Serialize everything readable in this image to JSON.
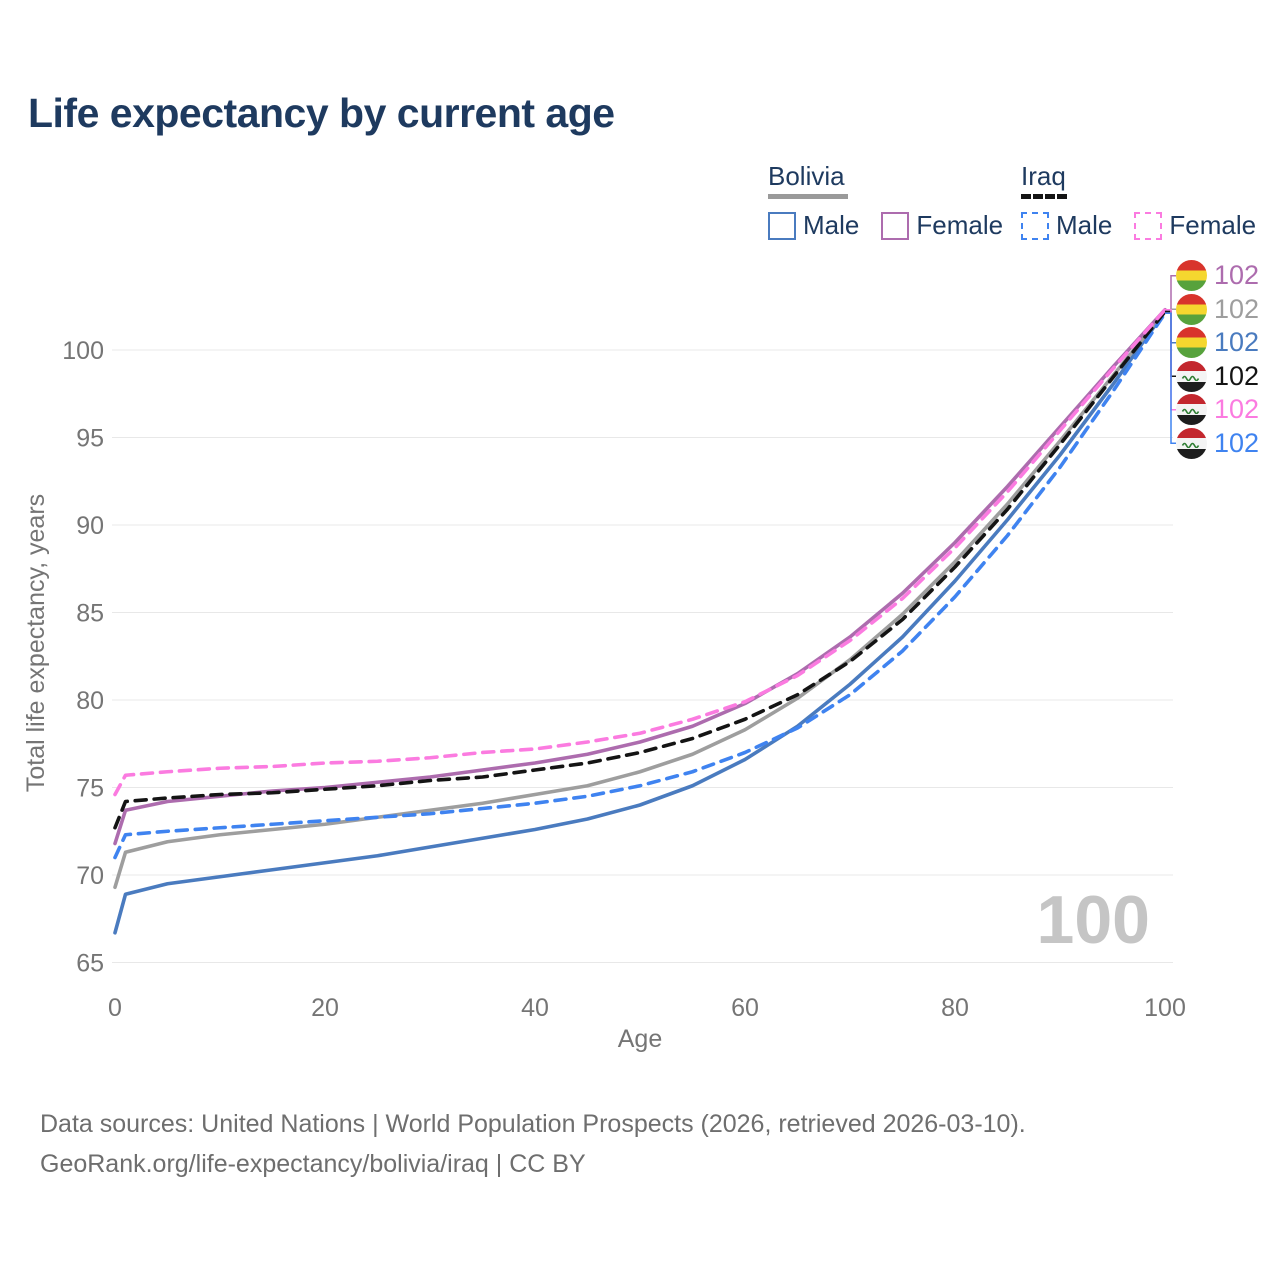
{
  "title": "Life expectancy by current age",
  "legend": {
    "groups": [
      {
        "label": "Bolivia",
        "rule_color": "#9a9a9a",
        "rule_style": "solid",
        "items": [
          {
            "label": "Male",
            "color": "#4a7bbf",
            "dash": "solid"
          },
          {
            "label": "Female",
            "color": "#ad6cae",
            "dash": "solid"
          }
        ]
      },
      {
        "label": "Iraq",
        "rule_color": "#141414",
        "rule_style": "dashed",
        "items": [
          {
            "label": "Male",
            "color": "#3f83f0",
            "dash": "dashed"
          },
          {
            "label": "Female",
            "color": "#fb7be0",
            "dash": "dashed"
          }
        ]
      }
    ]
  },
  "chart_data": {
    "type": "line",
    "title": "Life expectancy by current age",
    "xlabel": "Age",
    "ylabel": "Total life expectancy, years",
    "xlim": [
      0,
      100
    ],
    "ylim": [
      65,
      103
    ],
    "x_ticks": [
      0,
      20,
      40,
      60,
      80,
      100
    ],
    "y_ticks": [
      65,
      70,
      75,
      80,
      85,
      90,
      95,
      100
    ],
    "grid": "horizontal",
    "legend_position": "top-right",
    "ages": [
      0,
      1,
      5,
      10,
      15,
      20,
      25,
      30,
      35,
      40,
      45,
      50,
      55,
      60,
      65,
      70,
      75,
      80,
      85,
      90,
      95,
      100
    ],
    "series": [
      {
        "id": "bolivia-male",
        "name": "Bolivia Male",
        "country": "Bolivia",
        "sex": "Male",
        "color": "#4a7bbf",
        "dash": "solid",
        "values": [
          66.7,
          68.9,
          69.5,
          69.9,
          70.3,
          70.7,
          71.1,
          71.6,
          72.1,
          72.6,
          73.2,
          74.0,
          75.1,
          76.6,
          78.5,
          80.9,
          83.6,
          86.8,
          90.3,
          94.0,
          98.0,
          102.2
        ]
      },
      {
        "id": "bolivia-combined",
        "name": "Bolivia",
        "country": "Bolivia",
        "sex": "Combined",
        "color": "#9e9e9e",
        "dash": "solid",
        "values": [
          69.3,
          71.3,
          71.9,
          72.3,
          72.6,
          72.9,
          73.3,
          73.7,
          74.1,
          74.6,
          75.1,
          75.9,
          76.9,
          78.3,
          80.1,
          82.3,
          84.9,
          87.9,
          91.2,
          94.8,
          98.5,
          102.2
        ]
      },
      {
        "id": "bolivia-female",
        "name": "Bolivia Female",
        "country": "Bolivia",
        "sex": "Female",
        "color": "#ad6cae",
        "dash": "solid",
        "values": [
          71.8,
          73.7,
          74.2,
          74.5,
          74.8,
          75.0,
          75.3,
          75.6,
          76.0,
          76.4,
          76.9,
          77.6,
          78.5,
          79.8,
          81.5,
          83.6,
          86.1,
          89.0,
          92.2,
          95.6,
          99.0,
          102.3
        ]
      },
      {
        "id": "iraq-male",
        "name": "Iraq Male",
        "country": "Iraq",
        "sex": "Male",
        "color": "#3f83f0",
        "dash": "dashed",
        "values": [
          71.0,
          72.3,
          72.5,
          72.7,
          72.9,
          73.1,
          73.3,
          73.5,
          73.8,
          74.1,
          74.5,
          75.1,
          75.9,
          77.0,
          78.4,
          80.3,
          82.8,
          85.9,
          89.4,
          93.3,
          97.6,
          102.1
        ]
      },
      {
        "id": "iraq-combined",
        "name": "Iraq",
        "country": "Iraq",
        "sex": "Combined",
        "color": "#141414",
        "dash": "dashed",
        "values": [
          72.7,
          74.2,
          74.4,
          74.6,
          74.7,
          74.9,
          75.1,
          75.4,
          75.6,
          76.0,
          76.4,
          77.0,
          77.8,
          78.9,
          80.3,
          82.2,
          84.6,
          87.6,
          90.9,
          94.6,
          98.4,
          102.2
        ]
      },
      {
        "id": "iraq-female",
        "name": "Iraq Female",
        "country": "Iraq",
        "sex": "Female",
        "color": "#fb7be0",
        "dash": "dashed",
        "values": [
          74.6,
          75.7,
          75.9,
          76.1,
          76.2,
          76.4,
          76.5,
          76.7,
          77.0,
          77.2,
          77.6,
          78.1,
          78.9,
          79.9,
          81.4,
          83.4,
          85.8,
          88.7,
          91.9,
          95.4,
          98.9,
          102.3
        ]
      }
    ]
  },
  "end_labels": [
    {
      "series": "Bolivia Female",
      "flag": "bolivia",
      "value": "102",
      "color": "#ad6cae"
    },
    {
      "series": "Bolivia",
      "flag": "bolivia",
      "value": "102",
      "color": "#9e9e9e"
    },
    {
      "series": "Bolivia Male",
      "flag": "bolivia",
      "value": "102",
      "color": "#4a7bbf"
    },
    {
      "series": "Iraq",
      "flag": "iraq",
      "value": "102",
      "color": "#141414"
    },
    {
      "series": "Iraq Female",
      "flag": "iraq",
      "value": "102",
      "color": "#fb7be0"
    },
    {
      "series": "Iraq Male",
      "flag": "iraq",
      "value": "102",
      "color": "#3f83f0"
    }
  ],
  "watermark": "100",
  "footer": {
    "line1": "Data sources: United Nations | World Population Prospects (2026, retrieved 2026-03-10).",
    "line2": "GeoRank.org/life-expectancy/bolivia/iraq | CC BY"
  }
}
